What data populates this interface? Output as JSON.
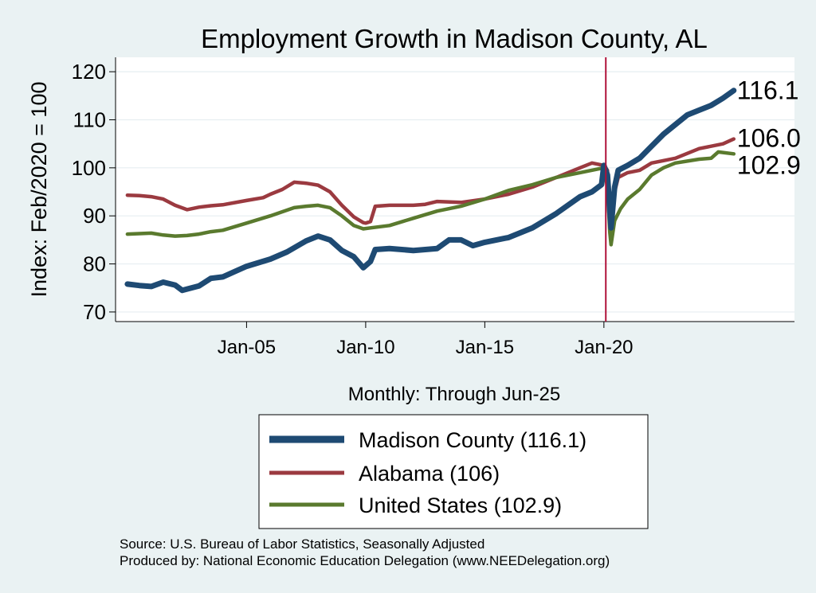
{
  "colors": {
    "background": "#eaf2f3",
    "plot_background": "#ffffff",
    "grid": "#e6eef1",
    "title": "#1f3f6e",
    "vline": "#b0123a",
    "madison": "#1e4a73",
    "alabama": "#9b3a40",
    "united_states": "#5a7a2e"
  },
  "chart_data": {
    "type": "line",
    "title": "Employment Growth in Madison  County, AL",
    "xlabel": "Monthly: Through Jun-25",
    "ylabel": "Index: Feb/2020 = 100",
    "ylim": [
      68,
      123
    ],
    "xlim": [
      1999.5,
      2028.0
    ],
    "yticks": [
      70,
      80,
      90,
      100,
      110,
      120
    ],
    "xticks": [
      {
        "value": 2005.0,
        "label": "Jan-05"
      },
      {
        "value": 2010.0,
        "label": "Jan-10"
      },
      {
        "value": 2015.0,
        "label": "Jan-15"
      },
      {
        "value": 2020.0,
        "label": "Jan-20"
      }
    ],
    "vline": 2020.08,
    "grid": true,
    "series": [
      {
        "name": "Madison  County (116.1)",
        "key": "madison",
        "end_label": "116.1",
        "points": [
          [
            2000.0,
            75.8
          ],
          [
            2000.5,
            75.5
          ],
          [
            2001.0,
            75.3
          ],
          [
            2001.5,
            76.2
          ],
          [
            2002.0,
            75.6
          ],
          [
            2002.3,
            74.5
          ],
          [
            2003.0,
            75.4
          ],
          [
            2003.5,
            77.0
          ],
          [
            2004.0,
            77.3
          ],
          [
            2004.5,
            78.4
          ],
          [
            2005.0,
            79.5
          ],
          [
            2006.0,
            81.0
          ],
          [
            2006.7,
            82.5
          ],
          [
            2007.5,
            84.8
          ],
          [
            2008.0,
            85.8
          ],
          [
            2008.5,
            85.0
          ],
          [
            2009.0,
            82.8
          ],
          [
            2009.5,
            81.5
          ],
          [
            2009.9,
            79.2
          ],
          [
            2010.2,
            80.5
          ],
          [
            2010.4,
            83.0
          ],
          [
            2011.0,
            83.2
          ],
          [
            2012.0,
            82.8
          ],
          [
            2013.0,
            83.2
          ],
          [
            2013.5,
            85.0
          ],
          [
            2014.0,
            85.0
          ],
          [
            2014.5,
            83.8
          ],
          [
            2015.0,
            84.5
          ],
          [
            2016.0,
            85.5
          ],
          [
            2017.0,
            87.5
          ],
          [
            2018.0,
            90.5
          ],
          [
            2019.0,
            94.0
          ],
          [
            2019.5,
            95.0
          ],
          [
            2019.9,
            96.5
          ],
          [
            2020.0,
            100.5
          ],
          [
            2020.15,
            98.5
          ],
          [
            2020.25,
            91.0
          ],
          [
            2020.3,
            87.5
          ],
          [
            2020.45,
            96.0
          ],
          [
            2020.6,
            99.5
          ],
          [
            2021.0,
            100.5
          ],
          [
            2021.5,
            102.0
          ],
          [
            2022.0,
            104.5
          ],
          [
            2022.5,
            107.0
          ],
          [
            2023.0,
            109.0
          ],
          [
            2023.5,
            111.0
          ],
          [
            2024.0,
            112.0
          ],
          [
            2024.5,
            113.0
          ],
          [
            2025.0,
            114.5
          ],
          [
            2025.45,
            116.1
          ]
        ]
      },
      {
        "name": "Alabama (106)",
        "key": "alabama",
        "end_label": "106.0",
        "points": [
          [
            2000.0,
            94.3
          ],
          [
            2000.5,
            94.2
          ],
          [
            2001.0,
            94.0
          ],
          [
            2001.5,
            93.5
          ],
          [
            2002.0,
            92.2
          ],
          [
            2002.5,
            91.3
          ],
          [
            2003.0,
            91.8
          ],
          [
            2003.5,
            92.1
          ],
          [
            2004.0,
            92.3
          ],
          [
            2005.0,
            93.2
          ],
          [
            2005.7,
            93.8
          ],
          [
            2006.0,
            94.5
          ],
          [
            2006.5,
            95.5
          ],
          [
            2007.0,
            97.0
          ],
          [
            2007.5,
            96.8
          ],
          [
            2008.0,
            96.4
          ],
          [
            2008.5,
            95.0
          ],
          [
            2009.0,
            92.2
          ],
          [
            2009.5,
            89.8
          ],
          [
            2009.9,
            88.6
          ],
          [
            2010.0,
            88.5
          ],
          [
            2010.2,
            88.8
          ],
          [
            2010.4,
            92.0
          ],
          [
            2011.0,
            92.2
          ],
          [
            2012.0,
            92.2
          ],
          [
            2012.5,
            92.4
          ],
          [
            2013.0,
            93.0
          ],
          [
            2014.0,
            92.8
          ],
          [
            2015.0,
            93.5
          ],
          [
            2016.0,
            94.5
          ],
          [
            2017.0,
            96.0
          ],
          [
            2018.0,
            98.0
          ],
          [
            2019.0,
            100.0
          ],
          [
            2019.5,
            101.0
          ],
          [
            2020.0,
            100.5
          ],
          [
            2020.15,
            99.5
          ],
          [
            2020.25,
            89.0
          ],
          [
            2020.3,
            87.5
          ],
          [
            2020.45,
            95.0
          ],
          [
            2020.6,
            98.0
          ],
          [
            2021.0,
            99.0
          ],
          [
            2021.5,
            99.5
          ],
          [
            2022.0,
            101.0
          ],
          [
            2022.5,
            101.5
          ],
          [
            2023.0,
            102.0
          ],
          [
            2024.0,
            104.0
          ],
          [
            2025.0,
            105.0
          ],
          [
            2025.45,
            106.0
          ]
        ]
      },
      {
        "name": "United States (102.9)",
        "key": "united_states",
        "end_label": "102.9",
        "points": [
          [
            2000.0,
            86.2
          ],
          [
            2000.5,
            86.3
          ],
          [
            2001.0,
            86.4
          ],
          [
            2001.5,
            86.0
          ],
          [
            2002.0,
            85.8
          ],
          [
            2002.5,
            85.9
          ],
          [
            2003.0,
            86.2
          ],
          [
            2003.5,
            86.7
          ],
          [
            2004.0,
            87.0
          ],
          [
            2005.0,
            88.5
          ],
          [
            2006.0,
            90.0
          ],
          [
            2007.0,
            91.7
          ],
          [
            2007.5,
            92.0
          ],
          [
            2008.0,
            92.2
          ],
          [
            2008.5,
            91.7
          ],
          [
            2009.0,
            90.0
          ],
          [
            2009.5,
            88.0
          ],
          [
            2009.9,
            87.3
          ],
          [
            2010.2,
            87.5
          ],
          [
            2011.0,
            88.0
          ],
          [
            2012.0,
            89.5
          ],
          [
            2013.0,
            91.0
          ],
          [
            2014.0,
            92.0
          ],
          [
            2015.0,
            93.5
          ],
          [
            2016.0,
            95.3
          ],
          [
            2017.0,
            96.5
          ],
          [
            2018.0,
            98.0
          ],
          [
            2019.0,
            99.0
          ],
          [
            2020.0,
            100.0
          ],
          [
            2020.15,
            96.0
          ],
          [
            2020.25,
            86.5
          ],
          [
            2020.3,
            84.0
          ],
          [
            2020.45,
            89.0
          ],
          [
            2020.7,
            91.5
          ],
          [
            2021.0,
            93.5
          ],
          [
            2021.5,
            95.5
          ],
          [
            2022.0,
            98.5
          ],
          [
            2022.5,
            100.0
          ],
          [
            2023.0,
            101.0
          ],
          [
            2024.0,
            101.8
          ],
          [
            2024.5,
            102.0
          ],
          [
            2024.8,
            103.3
          ],
          [
            2025.45,
            102.9
          ]
        ]
      }
    ],
    "legend": {
      "placement": "bottom",
      "entries": [
        "Madison  County (116.1)",
        "Alabama (106)",
        "United States (102.9)"
      ]
    }
  },
  "source_text": "Source: U.S. Bureau of Labor Statistics, Seasonally Adjusted",
  "produced_text": "Produced by: National Economic Education Delegation (www.NEEDelegation.org)"
}
